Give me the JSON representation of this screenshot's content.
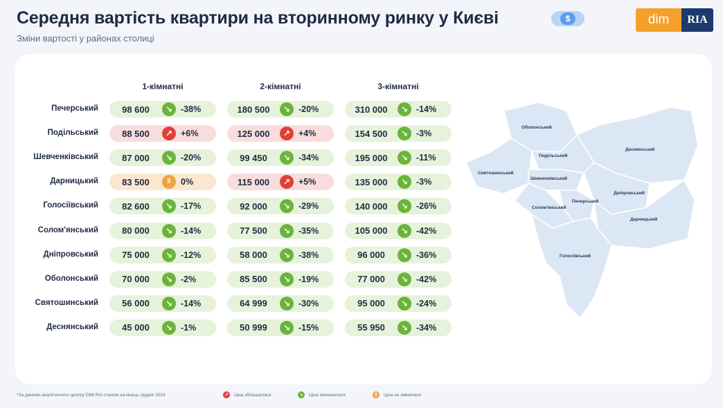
{
  "header": {
    "title": "Середня вартість квартири на вторинному ринку у Києві",
    "subtitle": "Зміни вартості у районах столиці",
    "currency_icon": "dollar-icon",
    "currency_symbol": "$",
    "logo_left": "dim",
    "logo_right": "RIA"
  },
  "colors": {
    "decrease": "#6ab43c",
    "increase": "#e0403a",
    "unchanged": "#f0a23c",
    "map_fill": "#dce7f5"
  },
  "chart_data": {
    "type": "table",
    "columns": [
      "1-кімнатні",
      "2-кімнатні",
      "3-кімнатні"
    ],
    "rows": [
      {
        "district": "Печерський",
        "cells": [
          {
            "price": "98 600",
            "change": "-38%",
            "trend": "down"
          },
          {
            "price": "180 500",
            "change": "-20%",
            "trend": "down"
          },
          {
            "price": "310 000",
            "change": "-14%",
            "trend": "down"
          }
        ]
      },
      {
        "district": "Подільський",
        "cells": [
          {
            "price": "88 500",
            "change": "+6%",
            "trend": "up"
          },
          {
            "price": "125 000",
            "change": "+4%",
            "trend": "up"
          },
          {
            "price": "154 500",
            "change": "-3%",
            "trend": "down"
          }
        ]
      },
      {
        "district": "Шевченківський",
        "cells": [
          {
            "price": "87 000",
            "change": "-20%",
            "trend": "down"
          },
          {
            "price": "99 450",
            "change": "-34%",
            "trend": "down"
          },
          {
            "price": "195 000",
            "change": "-11%",
            "trend": "down"
          }
        ]
      },
      {
        "district": "Дарницький",
        "cells": [
          {
            "price": "83 500",
            "change": "0%",
            "trend": "flat"
          },
          {
            "price": "115 000",
            "change": "+5%",
            "trend": "up"
          },
          {
            "price": "135 000",
            "change": "-3%",
            "trend": "down"
          }
        ]
      },
      {
        "district": "Голосіївський",
        "cells": [
          {
            "price": "82 600",
            "change": "-17%",
            "trend": "down"
          },
          {
            "price": "92 000",
            "change": "-29%",
            "trend": "down"
          },
          {
            "price": "140 000",
            "change": "-26%",
            "trend": "down"
          }
        ]
      },
      {
        "district": "Солом'янський",
        "cells": [
          {
            "price": "80 000",
            "change": "-14%",
            "trend": "down"
          },
          {
            "price": "77 500",
            "change": "-35%",
            "trend": "down"
          },
          {
            "price": "105 000",
            "change": "-42%",
            "trend": "down"
          }
        ]
      },
      {
        "district": "Дніпровський",
        "cells": [
          {
            "price": "75 000",
            "change": "-12%",
            "trend": "down"
          },
          {
            "price": "58 000",
            "change": "-38%",
            "trend": "down"
          },
          {
            "price": "96 000",
            "change": "-36%",
            "trend": "down"
          }
        ]
      },
      {
        "district": "Оболонський",
        "cells": [
          {
            "price": "70 000",
            "change": "-2%",
            "trend": "down"
          },
          {
            "price": "85 500",
            "change": "-19%",
            "trend": "down"
          },
          {
            "price": "77 000",
            "change": "-42%",
            "trend": "down"
          }
        ]
      },
      {
        "district": "Святошинський",
        "cells": [
          {
            "price": "56 000",
            "change": "-14%",
            "trend": "down"
          },
          {
            "price": "64 999",
            "change": "-30%",
            "trend": "down"
          },
          {
            "price": "95 000",
            "change": "-24%",
            "trend": "down"
          }
        ]
      },
      {
        "district": "Деснянський",
        "cells": [
          {
            "price": "45 000",
            "change": "-1%",
            "trend": "down"
          },
          {
            "price": "50 999",
            "change": "-15%",
            "trend": "down"
          },
          {
            "price": "55 950",
            "change": "-34%",
            "trend": "down"
          }
        ]
      }
    ]
  },
  "map": {
    "labels": [
      "Оболонський",
      "Подільський",
      "Деснянський",
      "Святошинський",
      "Шевченківський",
      "Дніпровський",
      "Печерський",
      "Солом'янський",
      "Дарницький",
      "Голосіївський"
    ]
  },
  "footer": {
    "footnote": "*За даними аналітичного центру DIM.RIA станом на кінець грудня 2024",
    "legend": [
      {
        "label": "Ціна збільшилася",
        "trend": "up",
        "icon": "arrow-up-icon"
      },
      {
        "label": "Ціна зменшилася",
        "trend": "down",
        "icon": "arrow-down-icon"
      },
      {
        "label": "Ціна не змінилася",
        "trend": "flat",
        "icon": "pause-icon"
      }
    ]
  }
}
